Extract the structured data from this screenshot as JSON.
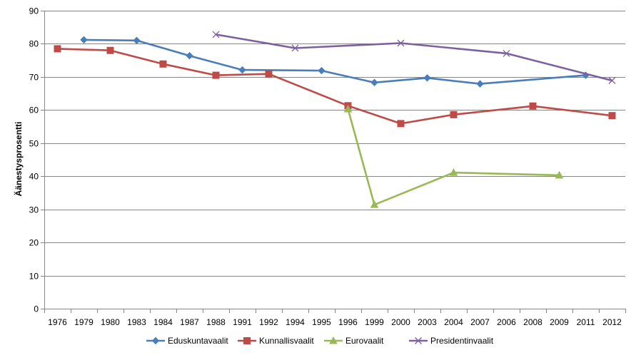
{
  "chart_data": {
    "type": "line",
    "title": "",
    "xlabel": "",
    "ylabel": "Äänestysprosentti",
    "ylim": [
      0,
      90
    ],
    "yticks": [
      0,
      10,
      20,
      30,
      40,
      50,
      60,
      70,
      80,
      90
    ],
    "grid": "horizontal",
    "legend_position": "bottom",
    "categories": [
      "1976",
      "1979",
      "1980",
      "1983",
      "1984",
      "1987",
      "1988",
      "1991",
      "1992",
      "1994",
      "1995",
      "1996",
      "1999",
      "2000",
      "2003",
      "2004",
      "2007",
      "2006",
      "2008",
      "2009",
      "2011",
      "2012"
    ],
    "series": [
      {
        "name": "Eduskuntavaalit",
        "color": "#4a7ebb",
        "marker": "diamond",
        "points": [
          {
            "x": "1979",
            "y": 81.2
          },
          {
            "x": "1983",
            "y": 81.0
          },
          {
            "x": "1987",
            "y": 76.4
          },
          {
            "x": "1991",
            "y": 72.1
          },
          {
            "x": "1995",
            "y": 71.9
          },
          {
            "x": "1999",
            "y": 68.3
          },
          {
            "x": "2003",
            "y": 69.7
          },
          {
            "x": "2007",
            "y": 67.9
          },
          {
            "x": "2011",
            "y": 70.5
          }
        ]
      },
      {
        "name": "Kunnallisvaalit",
        "color": "#be4b48",
        "marker": "square",
        "points": [
          {
            "x": "1976",
            "y": 78.5
          },
          {
            "x": "1980",
            "y": 78.0
          },
          {
            "x": "1984",
            "y": 73.9
          },
          {
            "x": "1988",
            "y": 70.5
          },
          {
            "x": "1992",
            "y": 70.9
          },
          {
            "x": "1996",
            "y": 61.3
          },
          {
            "x": "2000",
            "y": 55.9
          },
          {
            "x": "2004",
            "y": 58.6
          },
          {
            "x": "2008",
            "y": 61.2
          },
          {
            "x": "2012",
            "y": 58.3
          }
        ]
      },
      {
        "name": "Eurovaalit",
        "color": "#98b954",
        "marker": "triangle",
        "points": [
          {
            "x": "1996",
            "y": 60.3
          },
          {
            "x": "1999",
            "y": 31.4
          },
          {
            "x": "2004",
            "y": 41.1
          },
          {
            "x": "2009",
            "y": 40.3
          }
        ]
      },
      {
        "name": "Presidentinvaalit",
        "color": "#7d60a0",
        "marker": "x",
        "points": [
          {
            "x": "1988",
            "y": 82.8
          },
          {
            "x": "1994",
            "y": 78.7
          },
          {
            "x": "2000",
            "y": 80.2
          },
          {
            "x": "2006",
            "y": 77.1
          },
          {
            "x": "2012",
            "y": 68.9
          }
        ]
      }
    ]
  }
}
